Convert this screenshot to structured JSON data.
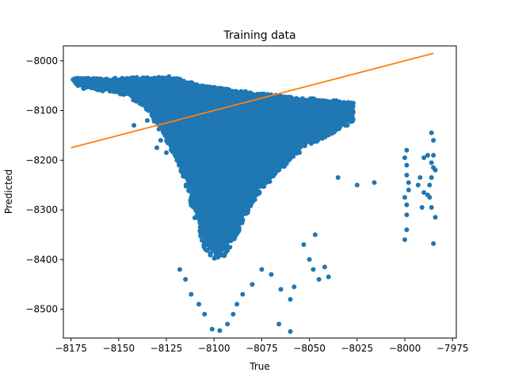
{
  "chart_data": {
    "type": "scatter",
    "title": "Training data",
    "xlabel": "True",
    "ylabel": "Predicted",
    "xlim": [
      -8179,
      -7973
    ],
    "ylim": [
      -8558,
      -7970
    ],
    "xticks": [
      -8175,
      -8150,
      -8125,
      -8100,
      -8075,
      -8050,
      -8025,
      -8000,
      -7975
    ],
    "yticks": [
      -8500,
      -8400,
      -8300,
      -8200,
      -8100,
      -8000
    ],
    "xtick_labels": [
      "−8175",
      "−8150",
      "−8125",
      "−8100",
      "−8075",
      "−8050",
      "−8025",
      "−8000",
      "−7975"
    ],
    "ytick_labels": [
      "−8500",
      "−8400",
      "−8300",
      "−8200",
      "−8100",
      "−8000"
    ],
    "grid": false,
    "series": [
      {
        "type": "scatter",
        "color": "#1f77b4",
        "region_rows": [
          [
            -8174,
            -8040,
            -8036
          ],
          [
            -8170,
            -8055,
            -8034
          ],
          [
            -8165,
            -8058,
            -8035
          ],
          [
            -8160,
            -8060,
            -8036
          ],
          [
            -8155,
            -8063,
            -8035
          ],
          [
            -8150,
            -8066,
            -8034
          ],
          [
            -8145,
            -8073,
            -8034
          ],
          [
            -8140,
            -8085,
            -8033
          ],
          [
            -8135,
            -8100,
            -8032
          ],
          [
            -8130,
            -8130,
            -8031
          ],
          [
            -8125,
            -8165,
            -8030
          ],
          [
            -8120,
            -8195,
            -8034
          ],
          [
            -8115,
            -8250,
            -8040
          ],
          [
            -8110,
            -8320,
            -8046
          ],
          [
            -8105,
            -8380,
            -8050
          ],
          [
            -8100,
            -8400,
            -8053
          ],
          [
            -8095,
            -8395,
            -8056
          ],
          [
            -8090,
            -8370,
            -8058
          ],
          [
            -8085,
            -8330,
            -8061
          ],
          [
            -8080,
            -8290,
            -8063
          ],
          [
            -8075,
            -8260,
            -8066
          ],
          [
            -8070,
            -8240,
            -8068
          ],
          [
            -8065,
            -8220,
            -8070
          ],
          [
            -8060,
            -8200,
            -8072
          ],
          [
            -8055,
            -8185,
            -8074
          ],
          [
            -8050,
            -8170,
            -8075
          ],
          [
            -8045,
            -8160,
            -8077
          ],
          [
            -8040,
            -8150,
            -8078
          ],
          [
            -8035,
            -8140,
            -8080
          ],
          [
            -8030,
            -8130,
            -8082
          ],
          [
            -8027,
            -8120,
            -8085
          ]
        ],
        "points": [
          [
            -8016,
            -8245
          ],
          [
            -8025,
            -8250
          ],
          [
            -8035,
            -8235
          ],
          [
            -7999,
            -8180
          ],
          [
            -8000,
            -8195
          ],
          [
            -7999,
            -8210
          ],
          [
            -7999,
            -8230
          ],
          [
            -7998,
            -8245
          ],
          [
            -7998,
            -8260
          ],
          [
            -8000,
            -8275
          ],
          [
            -7999,
            -8290
          ],
          [
            -7999,
            -8310
          ],
          [
            -7999,
            -8340
          ],
          [
            -8000,
            -8360
          ],
          [
            -7990,
            -8195
          ],
          [
            -7992,
            -8235
          ],
          [
            -7990,
            -8265
          ],
          [
            -7991,
            -8295
          ],
          [
            -7993,
            -8250
          ],
          [
            -7986,
            -8145
          ],
          [
            -7985,
            -8160
          ],
          [
            -7985,
            -8190
          ],
          [
            -7986,
            -8205
          ],
          [
            -7985,
            -8215
          ],
          [
            -7984,
            -8220
          ],
          [
            -7986,
            -8235
          ],
          [
            -7987,
            -8275
          ],
          [
            -7986,
            -8295
          ],
          [
            -7984,
            -8315
          ],
          [
            -7985,
            -8368
          ],
          [
            -7988,
            -8270
          ],
          [
            -7987,
            -8250
          ],
          [
            -7988,
            -8190
          ],
          [
            -8040,
            -8435
          ],
          [
            -8042,
            -8415
          ],
          [
            -8050,
            -8400
          ],
          [
            -8053,
            -8370
          ],
          [
            -8047,
            -8350
          ],
          [
            -8058,
            -8455
          ],
          [
            -8060,
            -8480
          ],
          [
            -8065,
            -8460
          ],
          [
            -8070,
            -8430
          ],
          [
            -8075,
            -8420
          ],
          [
            -8080,
            -8450
          ],
          [
            -8085,
            -8470
          ],
          [
            -8088,
            -8490
          ],
          [
            -8090,
            -8510
          ],
          [
            -8093,
            -8530
          ],
          [
            -8097,
            -8543
          ],
          [
            -8101,
            -8540
          ],
          [
            -8105,
            -8510
          ],
          [
            -8108,
            -8490
          ],
          [
            -8112,
            -8470
          ],
          [
            -8115,
            -8440
          ],
          [
            -8118,
            -8420
          ],
          [
            -8060,
            -8545
          ],
          [
            -8066,
            -8530
          ],
          [
            -8045,
            -8440
          ],
          [
            -8048,
            -8420
          ],
          [
            -8135,
            -8120
          ],
          [
            -8142,
            -8130
          ],
          [
            -8128,
            -8160
          ],
          [
            -8130,
            -8175
          ],
          [
            -8125,
            -8185
          ]
        ]
      },
      {
        "type": "line",
        "color": "#ff7f0e",
        "x": [
          -8175,
          -7985
        ],
        "y": [
          -8175,
          -7985
        ]
      }
    ]
  }
}
